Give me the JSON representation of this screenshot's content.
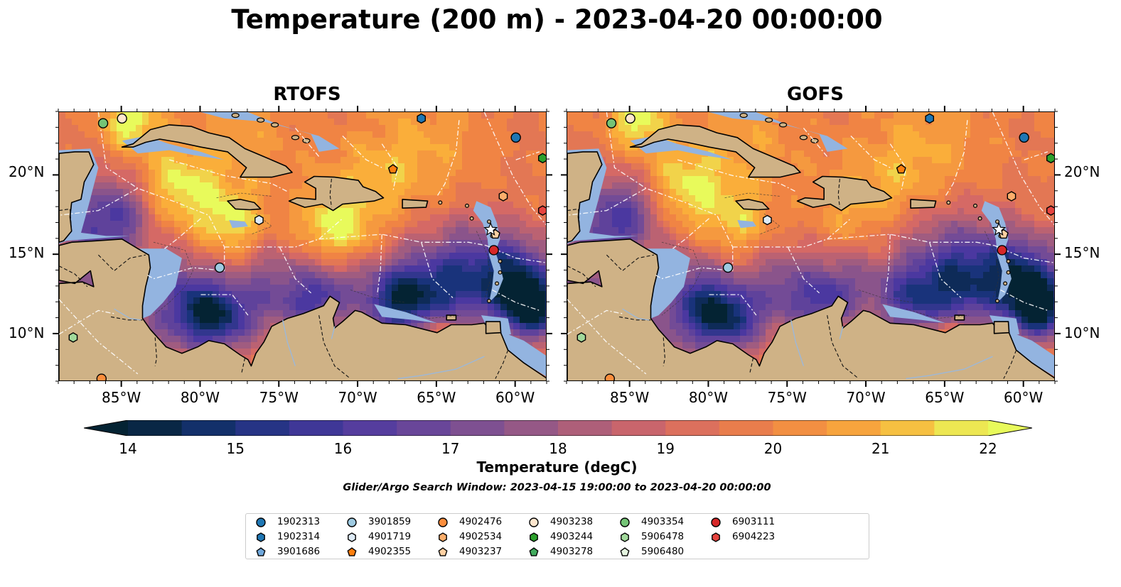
{
  "title": "Temperature (200 m) - 2023-04-20 00:00:00",
  "panels": [
    {
      "title": "RTOFS"
    },
    {
      "title": "GOFS"
    }
  ],
  "axes": {
    "lon_ticks": [
      "85°W",
      "80°W",
      "75°W",
      "70°W",
      "65°W",
      "60°W"
    ],
    "lat_ticks": [
      "20°N",
      "15°N",
      "10°N"
    ],
    "lon_range": [
      -89,
      -58
    ],
    "lat_range": [
      7,
      24
    ]
  },
  "colorbar": {
    "label": "Temperature (degC)",
    "ticks": [
      "14",
      "15",
      "16",
      "17",
      "18",
      "19",
      "20",
      "21",
      "22"
    ],
    "range": [
      14,
      22
    ],
    "colormap": "thermal",
    "extend": "both"
  },
  "search_window": "Glider/Argo Search Window: 2023-04-15 19:00:00 to 2023-04-20 00:00:00",
  "colors": {
    "land": "#cfb286",
    "shelf": "#93b4e0",
    "eez_lines": "#ffffff",
    "coastline": "#000000"
  },
  "legend": {
    "items": [
      {
        "id": "1902313",
        "marker": "circle",
        "color": "#1f77b4"
      },
      {
        "id": "1902314",
        "marker": "hexagon",
        "color": "#1f77b4"
      },
      {
        "id": "3901686",
        "marker": "pentagon",
        "color": "#6fa8dc"
      },
      {
        "id": "3901859",
        "marker": "circle",
        "color": "#9ecae1"
      },
      {
        "id": "4901719",
        "marker": "hexagon",
        "color": "#deebf7"
      },
      {
        "id": "4902355",
        "marker": "pentagon",
        "color": "#ff7f0e"
      },
      {
        "id": "4902476",
        "marker": "circle",
        "color": "#fd8d3c"
      },
      {
        "id": "4902534",
        "marker": "hexagon",
        "color": "#fdae6b"
      },
      {
        "id": "4903237",
        "marker": "pentagon",
        "color": "#fdd0a2"
      },
      {
        "id": "4903238",
        "marker": "circle",
        "color": "#fee6ce"
      },
      {
        "id": "4903244",
        "marker": "hexagon",
        "color": "#2ca02c"
      },
      {
        "id": "4903278",
        "marker": "pentagon",
        "color": "#41ab5d"
      },
      {
        "id": "4903354",
        "marker": "circle",
        "color": "#74c476"
      },
      {
        "id": "5906478",
        "marker": "hexagon",
        "color": "#a1d99b"
      },
      {
        "id": "5906480",
        "marker": "pentagon",
        "color": "#e5f5e0"
      },
      {
        "id": "6903111",
        "marker": "circle",
        "color": "#d62728"
      },
      {
        "id": "6904223",
        "marker": "hexagon",
        "color": "#e6443f"
      }
    ]
  },
  "floats_on_map": [
    {
      "id": "1902313",
      "lon": -60.0,
      "lat": 22.4
    },
    {
      "id": "1902314",
      "lon": -66.0,
      "lat": 23.6
    },
    {
      "id": "3901859",
      "lon": -78.8,
      "lat": 14.2
    },
    {
      "id": "4901719",
      "lon": -76.3,
      "lat": 17.2
    },
    {
      "id": "4902355",
      "lon": -67.8,
      "lat": 20.4
    },
    {
      "id": "4902476",
      "lon": -86.3,
      "lat": 7.2
    },
    {
      "id": "4902534",
      "lon": -60.8,
      "lat": 18.7
    },
    {
      "id": "4903237",
      "lon": -61.3,
      "lat": 16.3
    },
    {
      "id": "4903238",
      "lon": -85.0,
      "lat": 23.6
    },
    {
      "id": "4903244",
      "lon": -58.3,
      "lat": 21.1
    },
    {
      "id": "4903354",
      "lon": -86.2,
      "lat": 23.3
    },
    {
      "id": "5906478",
      "lon": -88.1,
      "lat": 9.8
    },
    {
      "id": "6903111",
      "lon": -61.4,
      "lat": 15.3
    },
    {
      "id": "6904223",
      "lon": -58.3,
      "lat": 17.8
    }
  ]
}
